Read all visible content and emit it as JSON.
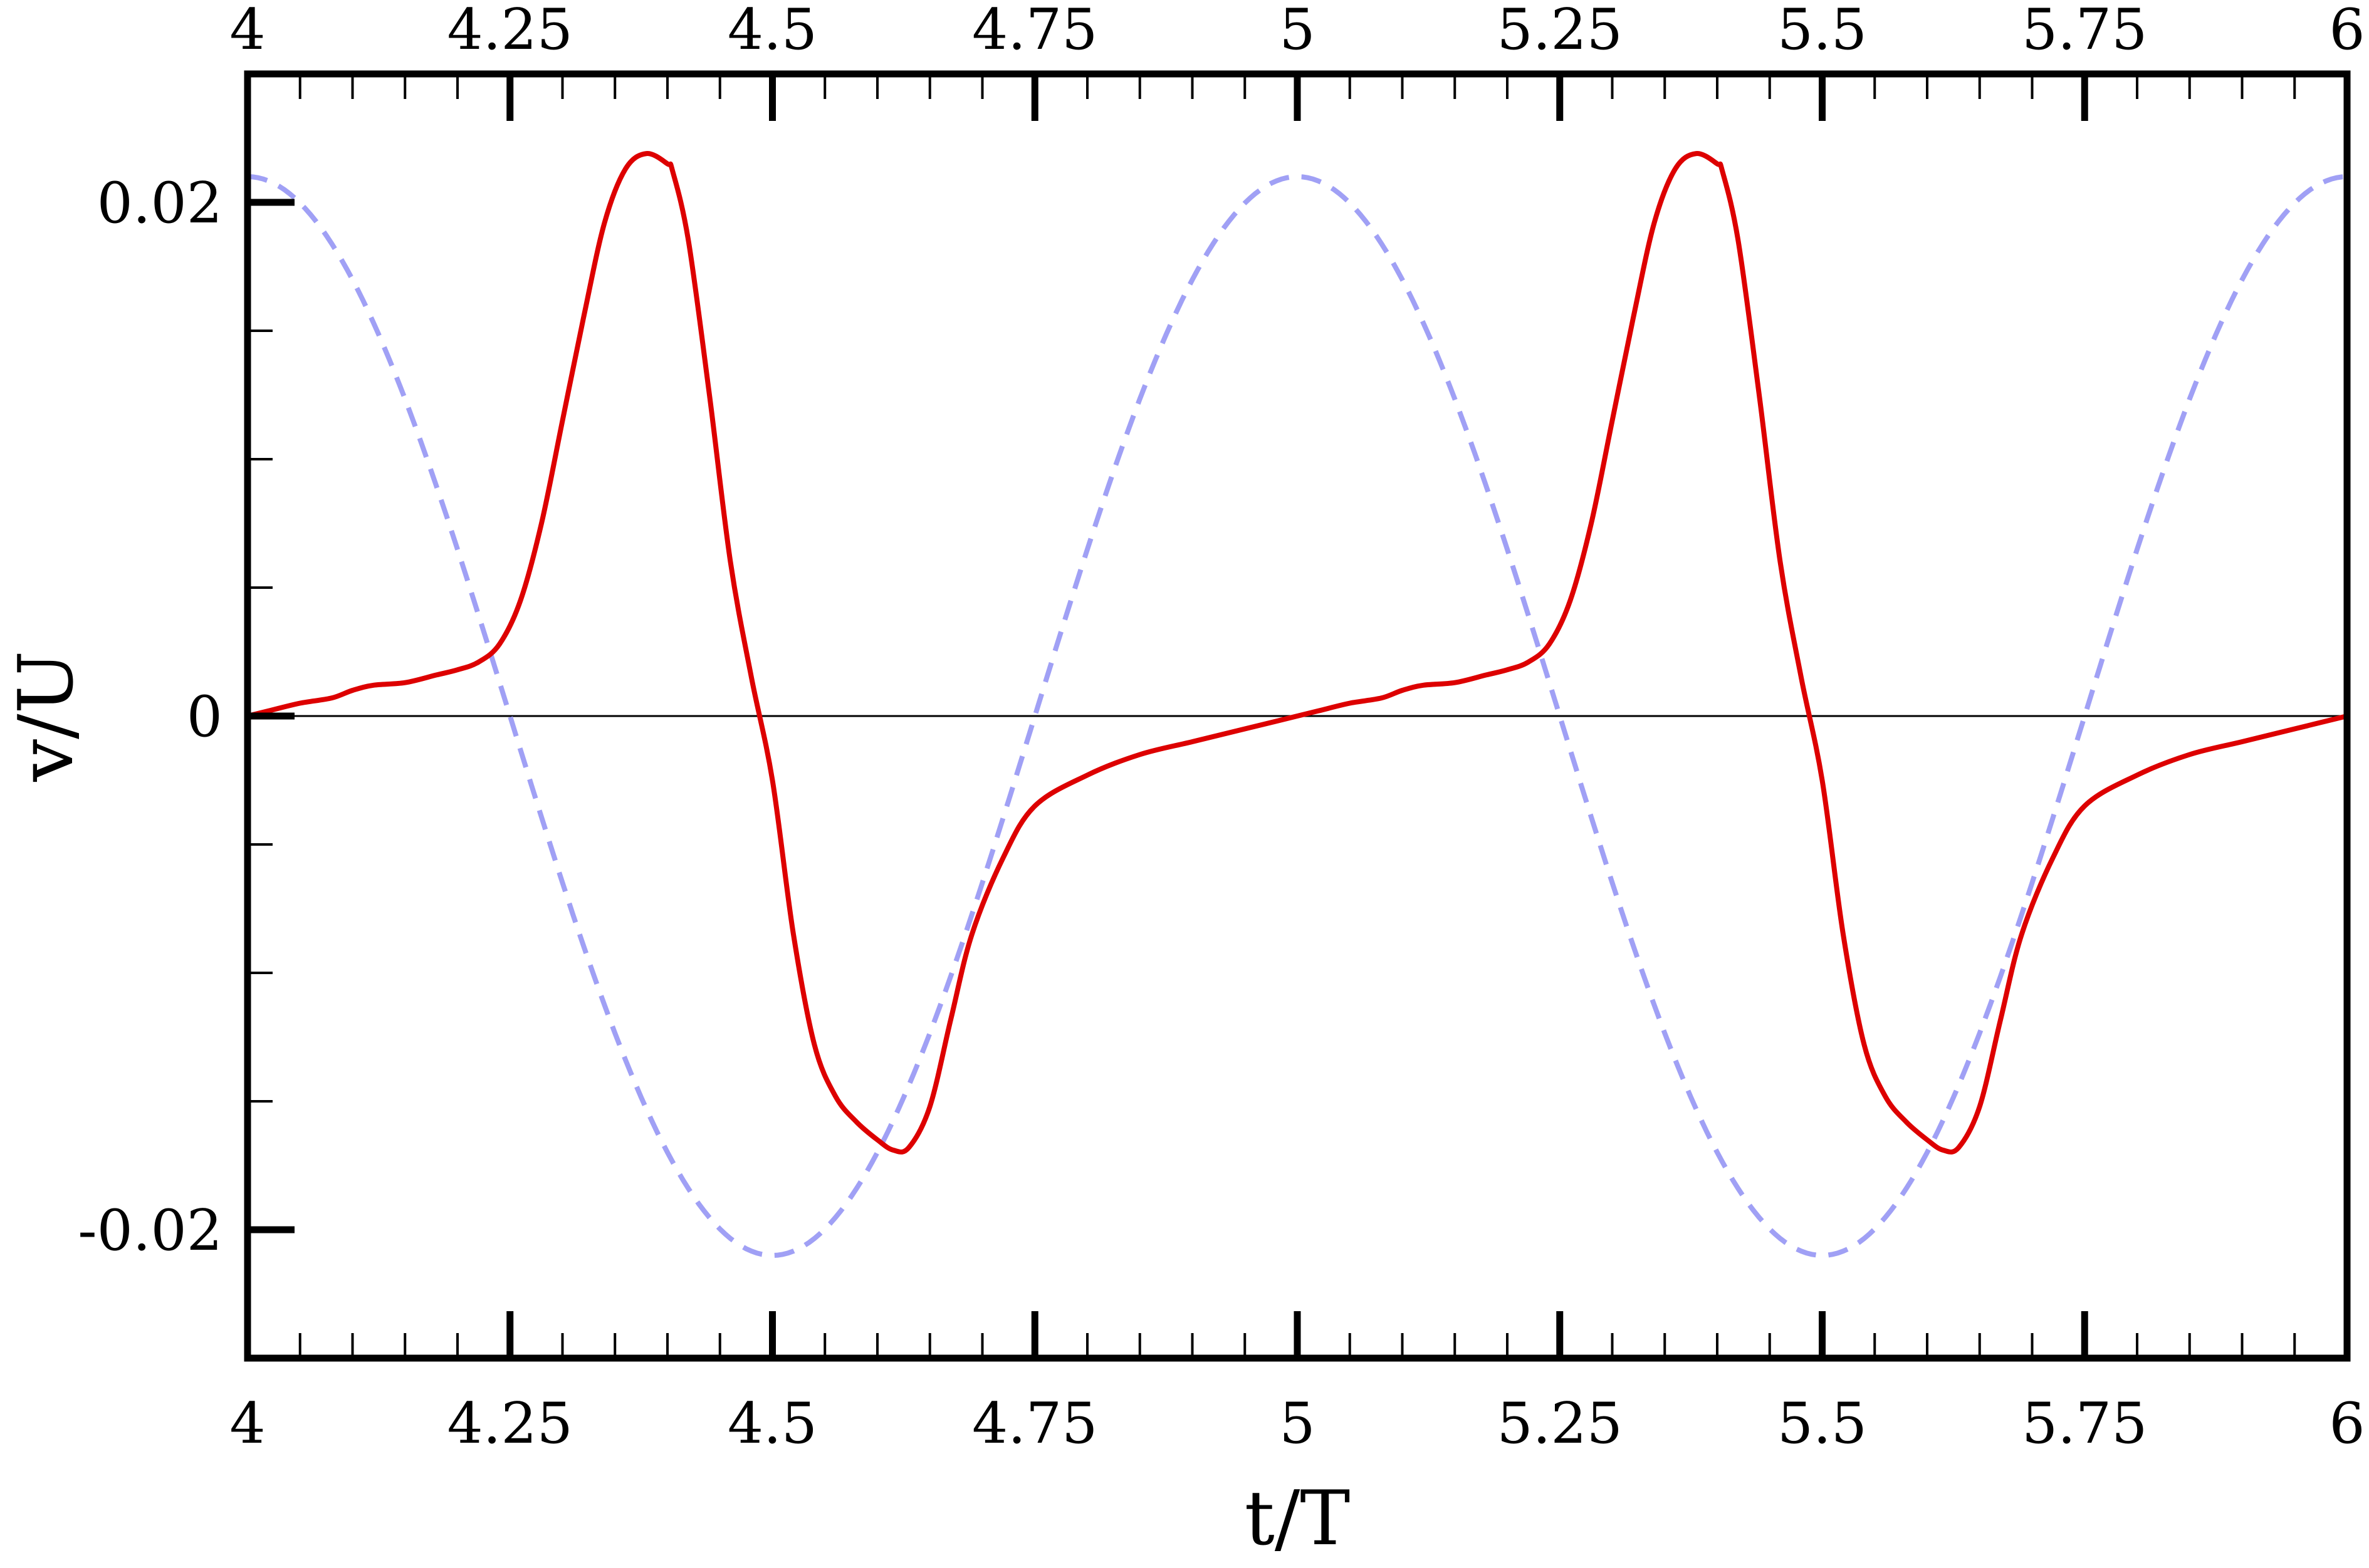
{
  "chart_data": {
    "type": "line",
    "title": "",
    "xlabel": "t/T",
    "ylabel": "v/U",
    "xlim": [
      4,
      6
    ],
    "ylim": [
      -0.025,
      0.025
    ],
    "xticks": [
      4,
      4.25,
      4.5,
      4.75,
      5,
      5.25,
      5.5,
      5.75,
      6
    ],
    "xtick_labels": [
      "4",
      "4.25",
      "4.5",
      "4.75",
      "5",
      "5.25",
      "5.5",
      "5.75",
      "6"
    ],
    "yticks": [
      -0.02,
      0,
      0.02
    ],
    "ytick_labels": [
      "-0.02",
      "0",
      "0.02"
    ],
    "grid": false,
    "legend": "none",
    "series": [
      {
        "style": "solid",
        "color": "#dd0000",
        "x": [
          4.0,
          4.02,
          4.05,
          4.08,
          4.1,
          4.12,
          4.15,
          4.18,
          4.2,
          4.22,
          4.24,
          4.26,
          4.28,
          4.3,
          4.32,
          4.34,
          4.36,
          4.38,
          4.4,
          4.405,
          4.42,
          4.44,
          4.46,
          4.48,
          4.5,
          4.52,
          4.54,
          4.56,
          4.58,
          4.6,
          4.615,
          4.63,
          4.65,
          4.67,
          4.69,
          4.72,
          4.75,
          4.8,
          4.85,
          4.9,
          4.95,
          5.0,
          5.02,
          5.05,
          5.08,
          5.1,
          5.12,
          5.15,
          5.18,
          5.2,
          5.22,
          5.24,
          5.26,
          5.28,
          5.3,
          5.32,
          5.34,
          5.36,
          5.38,
          5.4,
          5.405,
          5.42,
          5.44,
          5.46,
          5.48,
          5.5,
          5.52,
          5.54,
          5.56,
          5.58,
          5.6,
          5.615,
          5.63,
          5.65,
          5.67,
          5.69,
          5.72,
          5.75,
          5.8,
          5.85,
          5.9,
          5.95,
          6.0
        ],
        "y": [
          0.0,
          0.0002,
          0.0005,
          0.0007,
          0.001,
          0.0012,
          0.0013,
          0.0016,
          0.0018,
          0.0021,
          0.0028,
          0.0045,
          0.0075,
          0.0115,
          0.0155,
          0.0192,
          0.0213,
          0.0219,
          0.0215,
          0.0212,
          0.0185,
          0.0125,
          0.006,
          0.0015,
          -0.0025,
          -0.0085,
          -0.0128,
          -0.0148,
          -0.0158,
          -0.0165,
          -0.0169,
          -0.0168,
          -0.0152,
          -0.0118,
          -0.0085,
          -0.0055,
          -0.0035,
          -0.0023,
          -0.0015,
          -0.001,
          -0.0005,
          0.0,
          0.0002,
          0.0005,
          0.0007,
          0.001,
          0.0012,
          0.0013,
          0.0016,
          0.0018,
          0.0021,
          0.0028,
          0.0045,
          0.0075,
          0.0115,
          0.0155,
          0.0192,
          0.0213,
          0.0219,
          0.0215,
          0.0212,
          0.0185,
          0.0125,
          0.006,
          0.0015,
          -0.0025,
          -0.0085,
          -0.0128,
          -0.0148,
          -0.0158,
          -0.0165,
          -0.0169,
          -0.0168,
          -0.0152,
          -0.0118,
          -0.0085,
          -0.0055,
          -0.0035,
          -0.0023,
          -0.0015,
          -0.001,
          -0.0005,
          0.0
        ]
      },
      {
        "style": "dashed",
        "color": "#a0a0f5",
        "function": "0.021*cos(2*pi*t)",
        "amplitude": 0.021
      }
    ]
  }
}
